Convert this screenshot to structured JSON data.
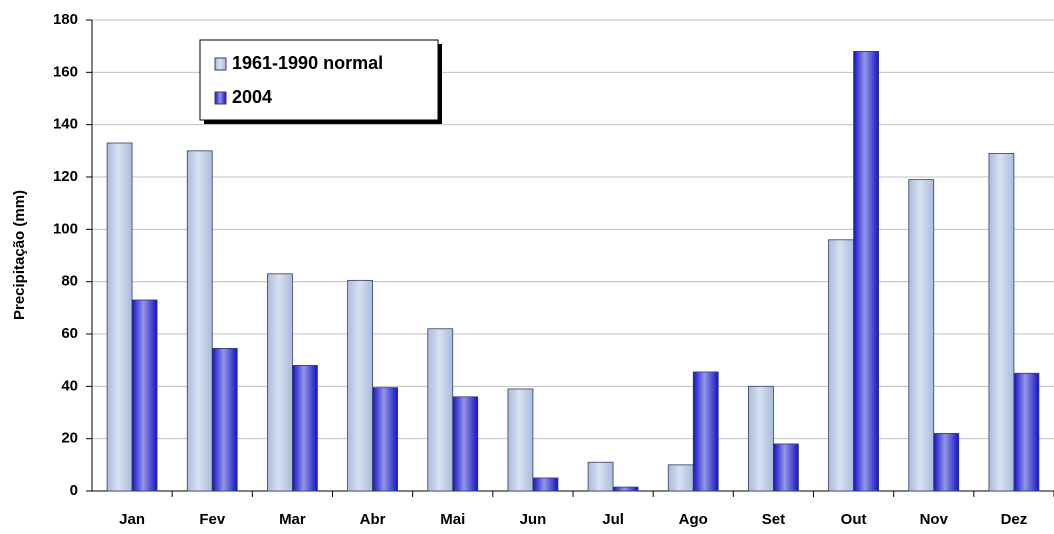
{
  "chart_data": {
    "type": "bar",
    "y_label": "Precipitação (mm)",
    "categories": [
      "Jan",
      "Fev",
      "Mar",
      "Abr",
      "Mai",
      "Jun",
      "Jul",
      "Ago",
      "Set",
      "Out",
      "Nov",
      "Dez"
    ],
    "series": [
      {
        "name": "1961-1990 normal",
        "color": "#a8bcdc",
        "values": [
          133,
          130,
          83,
          80.5,
          62,
          39,
          11,
          10,
          40,
          96,
          119,
          129
        ]
      },
      {
        "name": "2004",
        "color": "#1414c8",
        "values": [
          73,
          54.5,
          48,
          39.5,
          36,
          5,
          1.5,
          45.5,
          18,
          168,
          22,
          45
        ]
      }
    ],
    "ylim": [
      0,
      180
    ],
    "yticks": [
      0,
      20,
      40,
      60,
      80,
      100,
      120,
      140,
      160,
      180
    ],
    "grid": true
  }
}
